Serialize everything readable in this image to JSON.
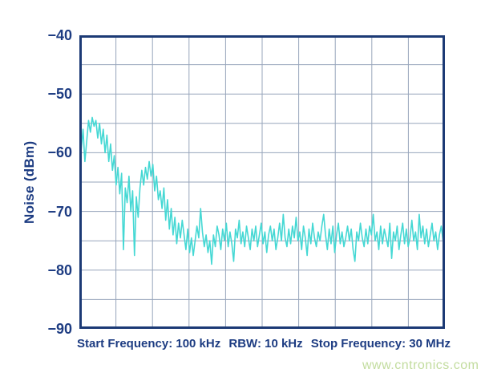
{
  "page": {
    "background_color": "#ffffff"
  },
  "colors": {
    "axis_text": "#1d3c82",
    "plot_border": "#1c3a75",
    "gridline": "#97a5bb",
    "trace": "#45d8d4",
    "watermark": "#c2dc9e"
  },
  "watermark": {
    "text": "www.cntronics.com"
  },
  "chart_data": {
    "type": "line",
    "title": "",
    "ylabel": "Noise (dBm)",
    "xlabel": "Start Frequency: 100 kHz   RBW: 10 kHz   Stop Frequency: 30 MHz",
    "xlabel_segments": [
      "Start Frequency: 100 kHz",
      "RBW: 10 kHz",
      "Stop Frequency: 30 MHz"
    ],
    "start_frequency_khz": 100,
    "stop_frequency_mhz": 30,
    "rbw_khz": 10,
    "ylim": [
      -90,
      -40
    ],
    "ytick_labels": [
      "−40",
      "−50",
      "−60",
      "−70",
      "−80",
      "−90"
    ],
    "ytick_values": [
      -40,
      -50,
      -60,
      -70,
      -80,
      -90
    ],
    "grid": {
      "visible": true,
      "x_divisions": 10,
      "y_divisions": 10,
      "y_minor_step_dbm": 5
    },
    "legend": "none",
    "series": [
      {
        "name": "noise-trace",
        "color": "#45d8d4",
        "x_is_even_sweep": true,
        "values_dbm": [
          -57.0,
          -59.5,
          -56.0,
          -61.5,
          -58.0,
          -54.5,
          -56.5,
          -54.0,
          -55.5,
          -54.5,
          -57.5,
          -55.0,
          -58.5,
          -56.0,
          -60.0,
          -57.0,
          -61.5,
          -58.5,
          -63.0,
          -60.5,
          -65.5,
          -62.5,
          -67.0,
          -63.5,
          -76.5,
          -66.0,
          -68.5,
          -64.0,
          -70.0,
          -66.5,
          -77.5,
          -67.5,
          -71.0,
          -66.0,
          -63.0,
          -65.5,
          -62.5,
          -64.5,
          -61.5,
          -64.0,
          -62.0,
          -66.5,
          -64.0,
          -68.0,
          -66.5,
          -69.5,
          -66.0,
          -71.5,
          -68.0,
          -73.0,
          -69.5,
          -74.0,
          -71.0,
          -75.5,
          -72.0,
          -74.5,
          -71.5,
          -74.0,
          -76.5,
          -73.0,
          -77.0,
          -74.5,
          -77.5,
          -75.0,
          -72.5,
          -74.5,
          -69.5,
          -73.5,
          -76.0,
          -74.0,
          -77.0,
          -75.0,
          -79.0,
          -74.0,
          -76.0,
          -72.5,
          -74.0,
          -76.5,
          -73.0,
          -75.0,
          -72.0,
          -76.0,
          -73.5,
          -75.5,
          -78.5,
          -73.0,
          -74.5,
          -71.5,
          -75.5,
          -73.5,
          -76.0,
          -72.5,
          -74.5,
          -76.5,
          -73.0,
          -75.0,
          -72.5,
          -76.0,
          -74.0,
          -72.0,
          -75.5,
          -73.5,
          -77.0,
          -74.0,
          -72.5,
          -75.0,
          -73.0,
          -76.5,
          -74.5,
          -72.0,
          -75.0,
          -70.5,
          -74.5,
          -76.0,
          -73.0,
          -75.5,
          -72.5,
          -74.5,
          -71.0,
          -75.0,
          -73.5,
          -76.5,
          -72.5,
          -74.5,
          -77.5,
          -73.0,
          -75.5,
          -72.0,
          -74.5,
          -76.0,
          -73.5,
          -75.0,
          -72.5,
          -70.5,
          -74.0,
          -76.5,
          -73.0,
          -75.5,
          -72.5,
          -77.0,
          -74.0,
          -72.0,
          -75.5,
          -73.5,
          -76.0,
          -74.5,
          -72.5,
          -75.0,
          -73.0,
          -76.5,
          -78.5,
          -73.5,
          -75.0,
          -72.0,
          -74.5,
          -76.0,
          -73.0,
          -75.5,
          -72.5,
          -74.0,
          -70.5,
          -75.0,
          -73.5,
          -76.5,
          -72.5,
          -75.5,
          -73.0,
          -74.5,
          -76.0,
          -72.0,
          -78.0,
          -73.5,
          -75.0,
          -72.5,
          -76.5,
          -74.0,
          -72.0,
          -75.5,
          -73.0,
          -76.0,
          -74.5,
          -71.5,
          -75.0,
          -73.5,
          -76.5,
          -70.5,
          -74.5,
          -72.5,
          -75.5,
          -73.0,
          -76.0,
          -74.0,
          -72.0,
          -75.0,
          -73.5,
          -76.5,
          -74.0,
          -72.5,
          -75.0,
          -74.0
        ]
      }
    ]
  }
}
